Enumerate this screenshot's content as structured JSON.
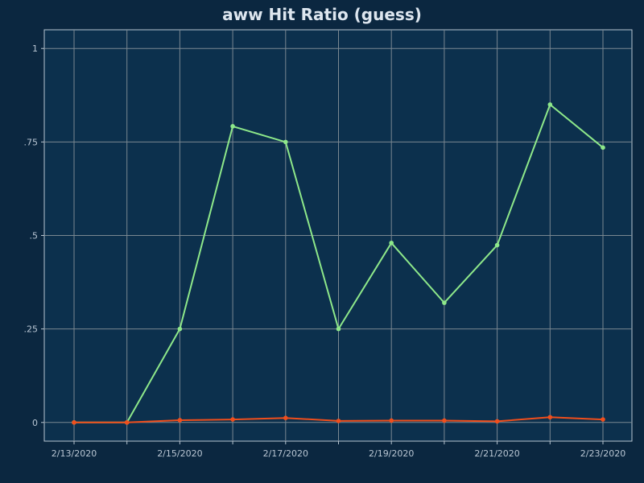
{
  "colors": {
    "page_background": "#0b2740",
    "plot_background": "#0c304d",
    "grid": "#7a8791",
    "axis": "#b7c5d1",
    "series_green": "#8ee88a",
    "series_red": "#f04e1c"
  },
  "chart_data": {
    "type": "line",
    "title": "aww Hit Ratio (guess)",
    "xlabel": "",
    "ylabel": "",
    "grid": true,
    "x": [
      "2/13/2020",
      "2/14/2020",
      "2/15/2020",
      "2/16/2020",
      "2/17/2020",
      "2/18/2020",
      "2/19/2020",
      "2/20/2020",
      "2/21/2020",
      "2/22/2020",
      "2/23/2020"
    ],
    "x_tick_labels": [
      "2/13/2020",
      "2/15/2020",
      "2/17/2020",
      "2/19/2020",
      "2/21/2020",
      "2/23/2020"
    ],
    "y_ticks": [
      0,
      0.25,
      0.5,
      0.75,
      1
    ],
    "y_tick_labels": [
      "0",
      ".25",
      ".5",
      ".75",
      "1"
    ],
    "ylim": [
      -0.05,
      1.05
    ],
    "series": [
      {
        "color": "#8ee88a",
        "values": [
          0,
          0,
          0.25,
          0.792,
          0.75,
          0.25,
          0.48,
          0.32,
          0.474,
          0.85,
          0.735
        ]
      },
      {
        "color": "#f04e1c",
        "values": [
          0,
          0,
          0.006,
          0.008,
          0.012,
          0.004,
          0.005,
          0.005,
          0.003,
          0.014,
          0.008
        ]
      }
    ]
  }
}
